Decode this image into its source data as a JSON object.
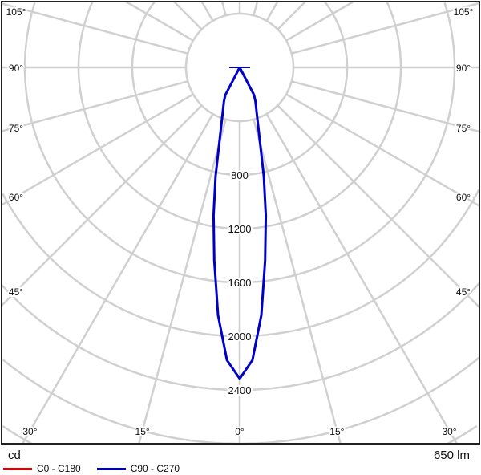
{
  "chart_data": {
    "type": "polar",
    "unit_label": "cd",
    "flux_label": "650 lm",
    "radial_ticks": [
      400,
      800,
      1200,
      1600,
      2000,
      2400,
      2800,
      3200,
      3600
    ],
    "radial_tick_labels": [
      "800",
      "1200",
      "1600",
      "2000",
      "2400"
    ],
    "angle_ticks": [
      0,
      15,
      30,
      45,
      60,
      75,
      90,
      105
    ],
    "angle_tick_labels": [
      "0°",
      "15°",
      "30°",
      "45°",
      "60°",
      "75°",
      "90°",
      "105°"
    ],
    "grid": true,
    "legend_placement": "bottom-left",
    "series": [
      {
        "name": "C0 - C180",
        "color": "#e00000",
        "angles": [],
        "values": []
      },
      {
        "name": "C90 - C270",
        "color": "#0000c8",
        "angles": [
          0,
          2.5,
          5,
          7.5,
          10,
          12.5,
          15,
          20,
          25,
          27.5,
          30,
          90
        ],
        "values": [
          2316,
          2180,
          1850,
          1450,
          1120,
          830,
          590,
          375,
          277,
          230,
          0,
          0
        ]
      }
    ]
  }
}
